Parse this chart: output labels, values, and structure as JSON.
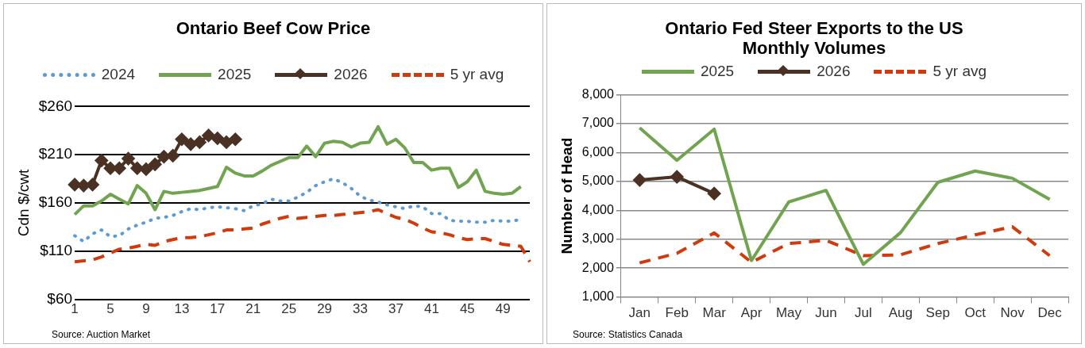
{
  "chart_data": [
    {
      "type": "line",
      "title": "Ontario Beef Cow Price",
      "ylabel": "Cdn $/cwt",
      "annotations": [
        "Source: Auction Market"
      ],
      "categories": [
        "1",
        null,
        null,
        null,
        "5",
        null,
        null,
        null,
        "9",
        null,
        null,
        null,
        "13",
        null,
        null,
        null,
        "17",
        null,
        null,
        null,
        "21",
        null,
        null,
        null,
        "25",
        null,
        null,
        null,
        "29",
        null,
        null,
        null,
        "33",
        null,
        null,
        null,
        "37",
        null,
        null,
        null,
        "41",
        null,
        null,
        null,
        "45",
        null,
        null,
        null,
        "49",
        null,
        null,
        null
      ],
      "ylim": [
        60,
        260
      ],
      "yticks": [
        {
          "value": 60,
          "label": "$60"
        },
        {
          "value": 110,
          "label": "$110"
        },
        {
          "value": 160,
          "label": "$160"
        },
        {
          "value": 210,
          "label": "$210"
        },
        {
          "value": 260,
          "label": "$260"
        }
      ],
      "grid": "y",
      "legend": "top",
      "series": [
        {
          "name": "2024",
          "color": "#5b9bd5",
          "line_style": "dotted",
          "marker": "none",
          "values": [
            126,
            120,
            128,
            132,
            125,
            126,
            133,
            137,
            140,
            144,
            145,
            147,
            151,
            154,
            153,
            155,
            156,
            155,
            154,
            152,
            157,
            159,
            164,
            162,
            162,
            166,
            171,
            178,
            182,
            185,
            181,
            175,
            167,
            163,
            161,
            158,
            156,
            154,
            157,
            156,
            149,
            149,
            142,
            141,
            141,
            140,
            140,
            142,
            141,
            141,
            143,
            null
          ]
        },
        {
          "name": "2025",
          "color": "#70a450",
          "line_style": "solid",
          "marker": "none",
          "values": [
            148,
            157,
            157,
            162,
            169,
            164,
            159,
            178,
            170,
            153,
            172,
            170,
            171,
            172,
            173,
            175,
            177,
            197,
            191,
            188,
            188,
            193,
            199,
            203,
            207,
            207,
            219,
            208,
            222,
            224,
            223,
            218,
            222,
            223,
            239,
            221,
            226,
            217,
            202,
            202,
            194,
            196,
            196,
            176,
            182,
            194,
            172,
            170,
            169,
            170,
            177,
            null
          ]
        },
        {
          "name": "2026",
          "color": "#4a3124",
          "line_style": "solid",
          "marker": "diamond",
          "values": [
            179,
            178,
            179,
            204,
            196,
            196,
            206,
            196,
            195,
            200,
            208,
            209,
            226,
            221,
            223,
            230,
            227,
            223,
            226,
            null,
            null,
            null,
            null,
            null,
            null,
            null,
            null,
            null,
            null,
            null,
            null,
            null,
            null,
            null,
            null,
            null,
            null,
            null,
            null,
            null,
            null,
            null,
            null,
            null,
            null,
            null,
            null,
            null,
            null,
            null,
            null,
            null
          ]
        },
        {
          "name": "5 yr avg",
          "color": "#d03a0c",
          "line_style": "dashed",
          "marker": "none",
          "values": [
            99,
            100,
            101,
            104,
            108,
            112,
            113,
            115,
            117,
            116,
            120,
            122,
            124,
            124,
            125,
            127,
            129,
            132,
            132,
            133,
            134,
            138,
            141,
            144,
            146,
            144,
            145,
            146,
            147,
            147,
            148,
            149,
            150,
            151,
            153,
            149,
            145,
            143,
            139,
            134,
            130,
            129,
            127,
            124,
            122,
            123,
            123,
            120,
            117,
            116,
            115,
            99
          ]
        }
      ]
    },
    {
      "type": "line",
      "title": "Ontario Fed Steer Exports to the US\nMonthly Volumes",
      "ylabel": "Number of Head",
      "annotations": [
        "Source: Statistics Canada"
      ],
      "categories": [
        "Jan",
        "Feb",
        "Mar",
        "Apr",
        "May",
        "Jun",
        "Jul",
        "Aug",
        "Sep",
        "Oct",
        "Nov",
        "Dec"
      ],
      "ylim": [
        1000,
        8000
      ],
      "yticks": [
        {
          "value": 1000,
          "label": "1,000"
        },
        {
          "value": 2000,
          "label": "2,000"
        },
        {
          "value": 3000,
          "label": "3,000"
        },
        {
          "value": 4000,
          "label": "4,000"
        },
        {
          "value": 5000,
          "label": "5,000"
        },
        {
          "value": 6000,
          "label": "6,000"
        },
        {
          "value": 7000,
          "label": "7,000"
        },
        {
          "value": 8000,
          "label": "8,000"
        }
      ],
      "grid": "y",
      "legend": "top",
      "series": [
        {
          "name": "2025",
          "color": "#70a450",
          "line_style": "solid",
          "marker": "none",
          "values": [
            6860,
            5730,
            6810,
            2260,
            4290,
            4690,
            2130,
            3230,
            4970,
            5360,
            5110,
            4380
          ]
        },
        {
          "name": "2026",
          "color": "#4a3124",
          "line_style": "solid",
          "marker": "diamond",
          "values": [
            5050,
            5160,
            4580,
            null,
            null,
            null,
            null,
            null,
            null,
            null,
            null,
            null
          ]
        },
        {
          "name": "5 yr avg",
          "color": "#d03a0c",
          "line_style": "dashed",
          "marker": "none",
          "values": [
            2180,
            2510,
            3220,
            2200,
            2850,
            2960,
            2430,
            2460,
            2850,
            3150,
            3430,
            2430
          ]
        }
      ]
    }
  ]
}
